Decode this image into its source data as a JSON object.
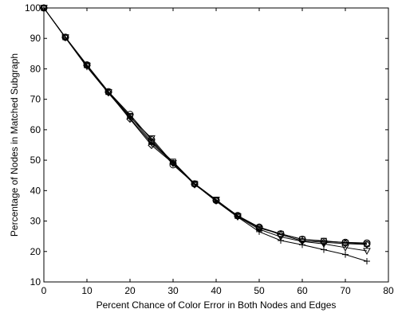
{
  "chart_data": {
    "type": "line",
    "xlabel": "Percent Chance of Color Error in Both Nodes and Edges",
    "ylabel": "Percentage of Nodes in Matched Subgraph",
    "xlim": [
      0,
      80
    ],
    "ylim": [
      10,
      100
    ],
    "xticks": [
      0,
      10,
      20,
      30,
      40,
      50,
      60,
      70,
      80
    ],
    "yticks": [
      10,
      20,
      30,
      40,
      50,
      60,
      70,
      80,
      90,
      100
    ],
    "grid": false,
    "x": [
      0,
      5,
      10,
      15,
      20,
      25,
      30,
      35,
      40,
      45,
      50,
      55,
      60,
      65,
      70,
      75
    ],
    "series": [
      {
        "marker": "circle",
        "values": [
          100,
          90.4,
          81.3,
          72.5,
          65.0,
          56.7,
          48.5,
          42.2,
          36.8,
          31.8,
          28.0,
          25.8,
          24.0,
          23.3,
          23.0,
          22.8
        ]
      },
      {
        "marker": "triangle-down",
        "values": [
          100,
          90.3,
          81.0,
          72.3,
          64.2,
          57.2,
          49.0,
          42.0,
          37.0,
          31.5,
          27.3,
          24.8,
          23.3,
          22.5,
          21.3,
          20.2
        ]
      },
      {
        "marker": "plus",
        "values": [
          100,
          90.2,
          80.6,
          72.0,
          63.8,
          55.5,
          49.3,
          42.1,
          36.5,
          31.3,
          26.5,
          23.6,
          22.2,
          20.6,
          19.0,
          16.8
        ]
      },
      {
        "marker": "diamond",
        "values": [
          100,
          90.3,
          81.0,
          72.2,
          63.5,
          54.9,
          49.0,
          42.0,
          36.8,
          31.5,
          28.0,
          25.5,
          23.5,
          23.0,
          22.6,
          22.3
        ]
      },
      {
        "marker": "square",
        "values": [
          100,
          90.4,
          81.2,
          72.4,
          64.5,
          56.0,
          49.5,
          42.3,
          37.0,
          31.7,
          27.7,
          25.8,
          24.0,
          23.5,
          22.9,
          22.5
        ]
      }
    ]
  }
}
